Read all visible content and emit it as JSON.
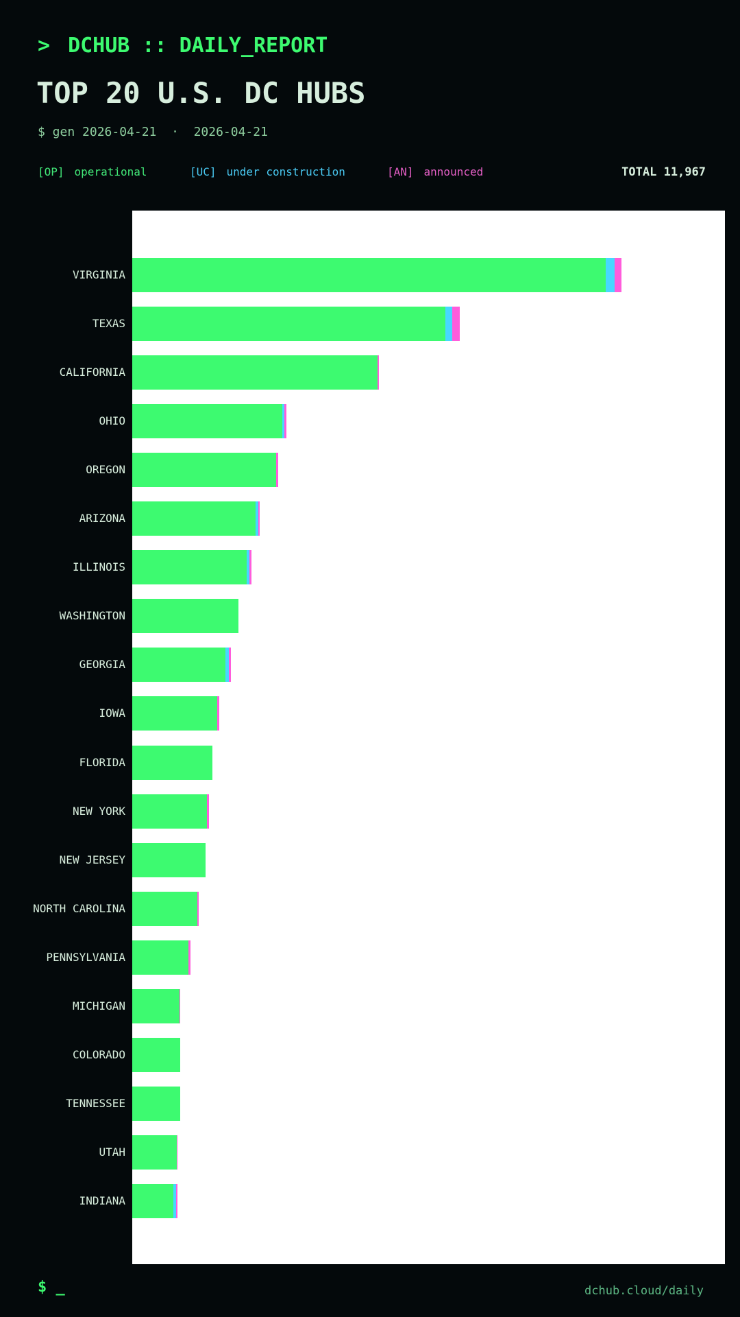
{
  "header": {
    "prompt": ">",
    "app_title": "DCHUB :: DAILY_REPORT"
  },
  "title": "TOP 20 U.S. DC HUBS",
  "subtitle": "$ gen 2026-04-21  ·  2026-04-21",
  "legend": {
    "items": [
      {
        "tag": "[OP]",
        "label": "operational",
        "color": "#42e878"
      },
      {
        "tag": "[UC]",
        "label": "under construction",
        "color": "#49c9f2"
      },
      {
        "tag": "[AN]",
        "label": "announced",
        "color": "#e55fc6"
      }
    ],
    "total_label": "TOTAL",
    "total_value": "11,967"
  },
  "footer": {
    "prompt": "$ _",
    "link": "dchub.cloud/daily"
  },
  "colors": {
    "background": "#04090b",
    "plot_background": "#ffffff",
    "accent_green": "#3dfa70",
    "accent_cyan": "#47d7ff",
    "accent_magenta": "#ff5cdc",
    "text_mint": "#d7eedd"
  },
  "chart_data": {
    "type": "bar",
    "orientation": "horizontal",
    "stacked": true,
    "title": "TOP 20 U.S. DC HUBS",
    "xlabel": "",
    "ylabel": "",
    "xlim": [
      0,
      720
    ],
    "grid": false,
    "legend_position": "top",
    "categories": [
      "VIRGINIA",
      "TEXAS",
      "CALIFORNIA",
      "OHIO",
      "OREGON",
      "ARIZONA",
      "ILLINOIS",
      "WASHINGTON",
      "GEORGIA",
      "IOWA",
      "FLORIDA",
      "NEW YORK",
      "NEW JERSEY",
      "NORTH CAROLINA",
      "PENNSYLVANIA",
      "MICHIGAN",
      "COLORADO",
      "TENNESSEE",
      "UTAH",
      "INDIANA"
    ],
    "series": [
      {
        "name": "operational",
        "color": "#3dfa70",
        "values": [
          575,
          380,
          298,
          182,
          175,
          150,
          139,
          129,
          113,
          103,
          97,
          91,
          89,
          79,
          68,
          57,
          58,
          58,
          54,
          50
        ]
      },
      {
        "name": "under construction",
        "color": "#47d7ff",
        "values": [
          11,
          9,
          0,
          3,
          0,
          3,
          3,
          0,
          4,
          0,
          0,
          0,
          0,
          0,
          0,
          0,
          0,
          0,
          0,
          3
        ]
      },
      {
        "name": "announced",
        "color": "#ff5cdc",
        "values": [
          8,
          9,
          2,
          2,
          2,
          2,
          3,
          0,
          3,
          3,
          0,
          2,
          0,
          2,
          3,
          1,
          0,
          0,
          1,
          2
        ]
      }
    ]
  }
}
